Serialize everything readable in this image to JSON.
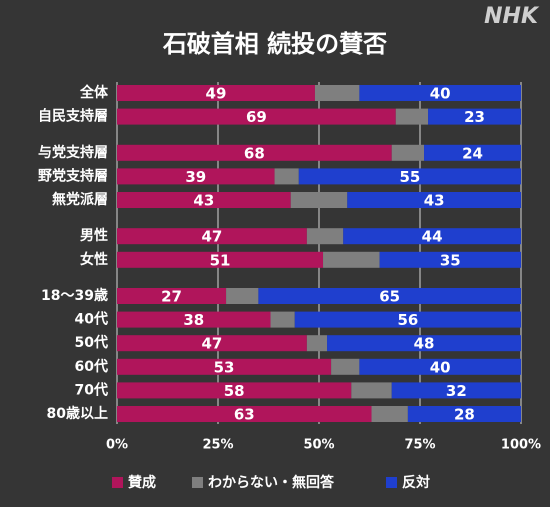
{
  "logo": "NHK",
  "chart_data": {
    "type": "stacked-barh",
    "title": "石破首相 続投の賛否",
    "categories": [
      "全体",
      "自民支持層",
      "与党支持層",
      "野党支持層",
      "無党派層",
      "男性",
      "女性",
      "18〜39歳",
      "40代",
      "50代",
      "60代",
      "70代",
      "80歳以上"
    ],
    "series": [
      {
        "name": "賛成",
        "color": "#b0155b",
        "values": [
          49,
          69,
          68,
          39,
          43,
          47,
          51,
          27,
          38,
          47,
          53,
          58,
          63
        ]
      },
      {
        "name": "わからない・無回答",
        "color": "#7f7f7f",
        "values": [
          11,
          8,
          8,
          6,
          14,
          9,
          14,
          8,
          6,
          5,
          7,
          10,
          9
        ]
      },
      {
        "name": "反対",
        "color": "#1f3fce",
        "values": [
          40,
          23,
          24,
          55,
          43,
          44,
          35,
          65,
          56,
          48,
          40,
          32,
          28
        ]
      }
    ],
    "xlim": [
      0,
      100
    ],
    "xticks": [
      {
        "value": 0,
        "label": "0%"
      },
      {
        "value": 25,
        "label": "25%"
      },
      {
        "value": 50,
        "label": "50%"
      },
      {
        "value": 75,
        "label": "75%"
      },
      {
        "value": 100,
        "label": "100%"
      }
    ],
    "grid": true,
    "legend": "bottom"
  }
}
